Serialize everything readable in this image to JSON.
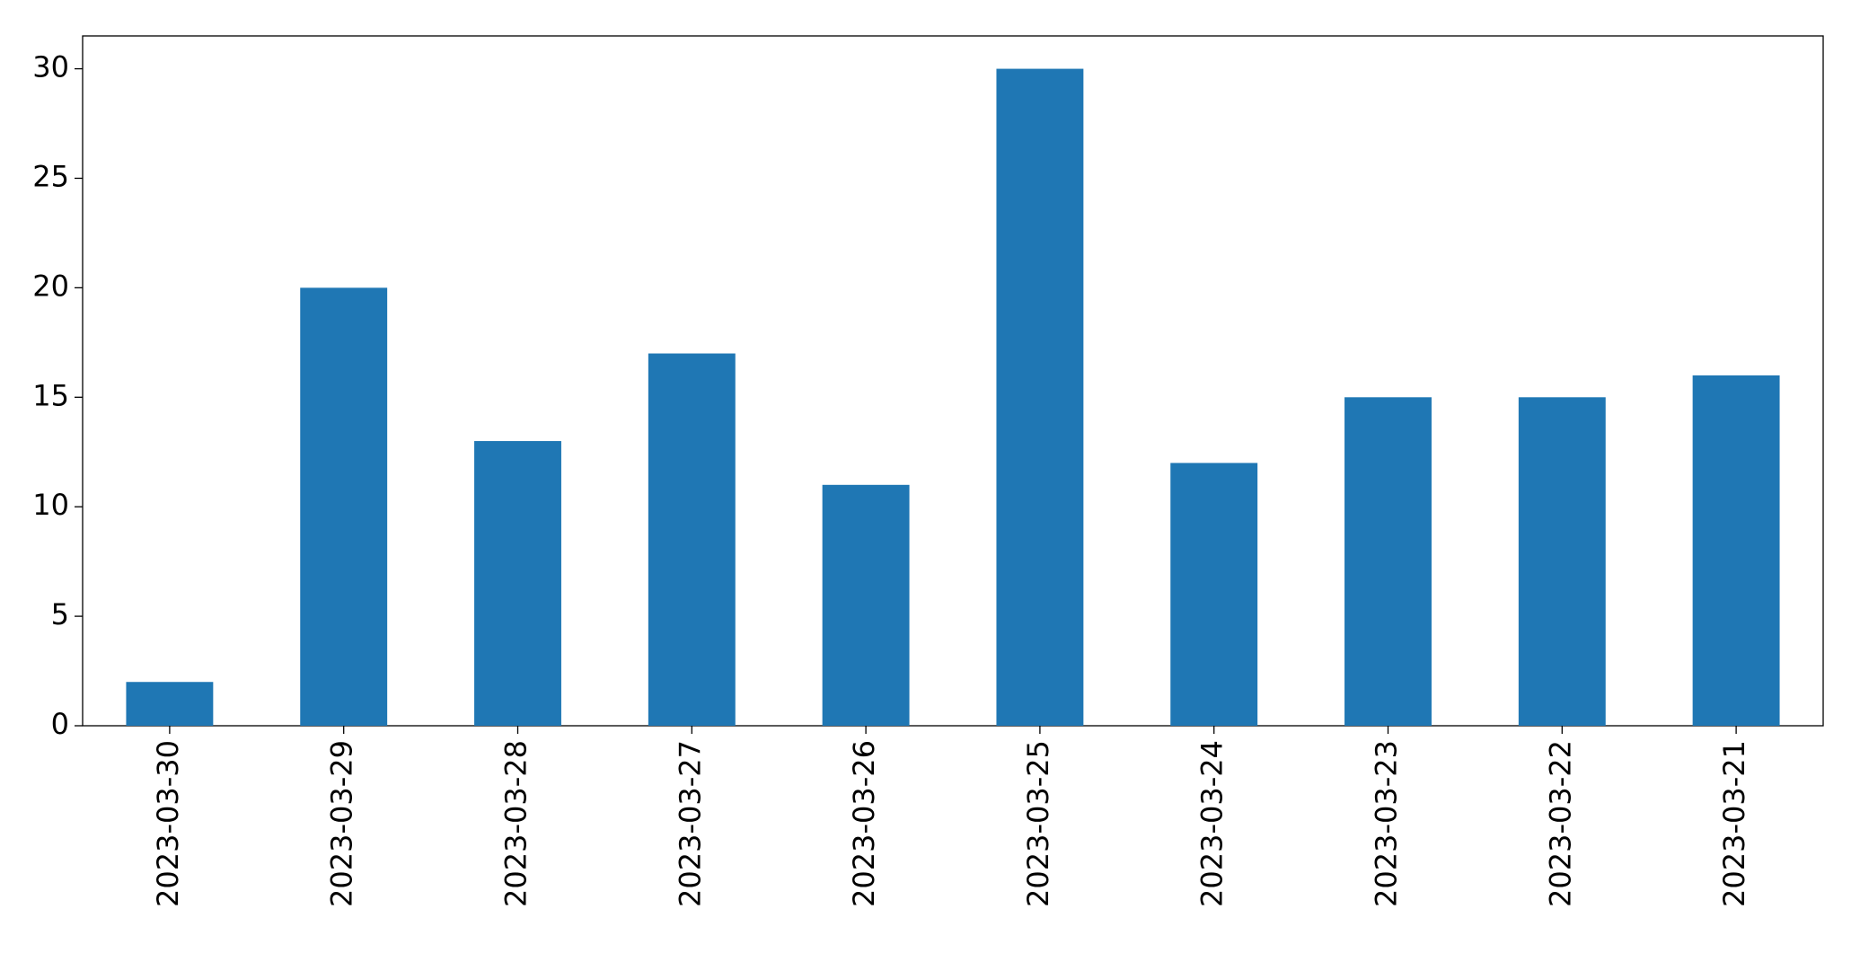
{
  "chart_data": {
    "type": "bar",
    "categories": [
      "2023-03-30",
      "2023-03-29",
      "2023-03-28",
      "2023-03-27",
      "2023-03-26",
      "2023-03-25",
      "2023-03-24",
      "2023-03-23",
      "2023-03-22",
      "2023-03-21"
    ],
    "values": [
      2,
      20,
      13,
      17,
      11,
      30,
      12,
      15,
      15,
      16
    ],
    "color": "#1f77b4",
    "ylim": [
      0,
      31.5
    ],
    "yticks": [
      0,
      5,
      10,
      15,
      20,
      25,
      30
    ],
    "grid": false
  }
}
